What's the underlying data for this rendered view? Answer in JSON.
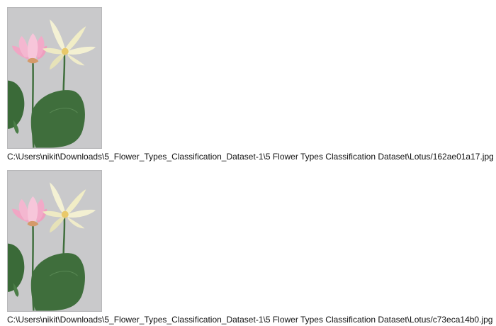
{
  "images": [
    {
      "path": "C:\\Users\\nikit\\Downloads\\5_Flower_Types_Classification_Dataset-1\\5 Flower Types Classification Dataset\\Lotus/162ae01a17.jpg"
    },
    {
      "path": "C:\\Users\\nikit\\Downloads\\5_Flower_Types_Classification_Dataset-1\\5 Flower Types Classification Dataset\\Lotus/c73eca14b0.jpg"
    }
  ],
  "colors": {
    "photo_background": "#c9c9cb",
    "pink_petal": "#f2a9c6",
    "cream_petal": "#f4f1d4",
    "leaf_green": "#3f6e3c"
  }
}
